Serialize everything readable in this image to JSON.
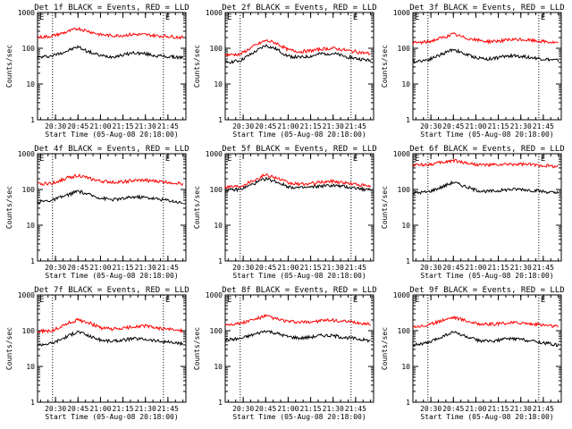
{
  "colors": {
    "events": "#000000",
    "lld": "#ff0000",
    "axes": "#000000",
    "background": "#ffffff"
  },
  "common": {
    "xlabel": "Start Time (05-Aug-08 20:18:00)",
    "ylabel": "Counts/sec",
    "x_tick_labels": [
      "20:30",
      "20:45",
      "21:00",
      "21:15",
      "21:30",
      "21:45"
    ],
    "y_tick_labels": [
      "1",
      "10",
      "100",
      "1000"
    ],
    "marker_left": "E",
    "marker_right": "E"
  },
  "chart_data": [
    {
      "type": "line",
      "title": "Det 1f BLACK = Events, RED = LLD",
      "xlabel": "Start Time (05-Aug-08 20:18:00)",
      "ylabel": "Counts/sec",
      "ylim": [
        1,
        1000
      ],
      "y_scale": "log",
      "xlim": [
        "20:18",
        "21:57"
      ],
      "vertical_markers": [
        "20:28",
        "21:42"
      ],
      "x": [
        "20:18",
        "20:28",
        "20:38",
        "20:45",
        "20:52",
        "21:00",
        "21:08",
        "21:15",
        "21:22",
        "21:30",
        "21:37",
        "21:45",
        "21:55"
      ],
      "series": [
        {
          "name": "BLACK = Events",
          "values": [
            55,
            62,
            85,
            110,
            80,
            62,
            58,
            65,
            75,
            70,
            62,
            58,
            55
          ]
        },
        {
          "name": "RED = LLD",
          "values": [
            200,
            220,
            290,
            360,
            300,
            240,
            225,
            230,
            245,
            240,
            225,
            215,
            200
          ]
        }
      ]
    },
    {
      "type": "line",
      "title": "Det 2f BLACK = Events, RED = LLD",
      "xlabel": "Start Time (05-Aug-08 20:18:00)",
      "ylabel": "Counts/sec",
      "ylim": [
        1,
        1000
      ],
      "y_scale": "log",
      "xlim": [
        "20:18",
        "21:57"
      ],
      "vertical_markers": [
        "20:28",
        "21:42"
      ],
      "x": [
        "20:18",
        "20:28",
        "20:38",
        "20:45",
        "20:52",
        "21:00",
        "21:08",
        "21:15",
        "21:22",
        "21:30",
        "21:37",
        "21:45",
        "21:55"
      ],
      "series": [
        {
          "name": "BLACK = Events",
          "values": [
            40,
            45,
            80,
            120,
            95,
            60,
            55,
            60,
            70,
            72,
            60,
            52,
            45
          ]
        },
        {
          "name": "RED = LLD",
          "values": [
            65,
            68,
            120,
            165,
            140,
            90,
            80,
            85,
            95,
            100,
            90,
            80,
            70
          ]
        }
      ]
    },
    {
      "type": "line",
      "title": "Det 3f BLACK = Events, RED = LLD",
      "xlabel": "Start Time (05-Aug-08 20:18:00)",
      "ylabel": "Counts/sec",
      "ylim": [
        1,
        1000
      ],
      "y_scale": "log",
      "xlim": [
        "20:18",
        "21:57"
      ],
      "vertical_markers": [
        "20:28",
        "21:42"
      ],
      "x": [
        "20:18",
        "20:28",
        "20:38",
        "20:45",
        "20:52",
        "21:00",
        "21:08",
        "21:15",
        "21:22",
        "21:30",
        "21:37",
        "21:45",
        "21:55"
      ],
      "series": [
        {
          "name": "BLACK = Events",
          "values": [
            42,
            48,
            70,
            95,
            70,
            55,
            50,
            55,
            62,
            60,
            55,
            50,
            45
          ]
        },
        {
          "name": "RED = LLD",
          "values": [
            140,
            150,
            200,
            250,
            200,
            170,
            155,
            160,
            170,
            175,
            165,
            155,
            140
          ]
        }
      ]
    },
    {
      "type": "line",
      "title": "Det 4f BLACK = Events, RED = LLD",
      "xlabel": "Start Time (05-Aug-08 20:18:00)",
      "ylabel": "Counts/sec",
      "ylim": [
        1,
        1000
      ],
      "y_scale": "log",
      "xlim": [
        "20:18",
        "21:57"
      ],
      "vertical_markers": [
        "20:28",
        "21:42"
      ],
      "x": [
        "20:18",
        "20:28",
        "20:38",
        "20:45",
        "20:52",
        "21:00",
        "21:08",
        "21:15",
        "21:22",
        "21:30",
        "21:37",
        "21:45",
        "21:55"
      ],
      "series": [
        {
          "name": "BLACK = Events",
          "values": [
            45,
            50,
            70,
            90,
            72,
            58,
            52,
            55,
            62,
            60,
            55,
            50,
            42
          ]
        },
        {
          "name": "RED = LLD",
          "values": [
            140,
            150,
            210,
            250,
            205,
            170,
            160,
            165,
            175,
            180,
            170,
            160,
            145
          ]
        }
      ]
    },
    {
      "type": "line",
      "title": "Det 5f BLACK = Events, RED = LLD",
      "xlabel": "Start Time (05-Aug-08 20:18:00)",
      "ylabel": "Counts/sec",
      "ylim": [
        1,
        1000
      ],
      "y_scale": "log",
      "xlim": [
        "20:18",
        "21:57"
      ],
      "vertical_markers": [
        "20:28",
        "21:42"
      ],
      "x": [
        "20:18",
        "20:28",
        "20:38",
        "20:45",
        "20:52",
        "21:00",
        "21:08",
        "21:15",
        "21:22",
        "21:30",
        "21:37",
        "21:45",
        "21:55"
      ],
      "series": [
        {
          "name": "BLACK = Events",
          "values": [
            95,
            100,
            150,
            200,
            165,
            120,
            110,
            115,
            125,
            130,
            120,
            110,
            95
          ]
        },
        {
          "name": "RED = LLD",
          "values": [
            120,
            125,
            190,
            260,
            215,
            150,
            140,
            145,
            160,
            170,
            155,
            140,
            120
          ]
        }
      ]
    },
    {
      "type": "line",
      "title": "Det 6f BLACK = Events, RED = LLD",
      "xlabel": "Start Time (05-Aug-08 20:18:00)",
      "ylabel": "Counts/sec",
      "ylim": [
        1,
        1000
      ],
      "y_scale": "log",
      "xlim": [
        "20:18",
        "21:57"
      ],
      "vertical_markers": [
        "20:28",
        "21:42"
      ],
      "x": [
        "20:18",
        "20:28",
        "20:38",
        "20:45",
        "20:52",
        "21:00",
        "21:08",
        "21:15",
        "21:22",
        "21:30",
        "21:37",
        "21:45",
        "21:55"
      ],
      "series": [
        {
          "name": "BLACK = Events",
          "values": [
            80,
            85,
            120,
            160,
            125,
            95,
            88,
            92,
            100,
            102,
            95,
            88,
            78
          ]
        },
        {
          "name": "RED = LLD",
          "values": [
            480,
            500,
            570,
            650,
            570,
            500,
            480,
            490,
            500,
            510,
            490,
            470,
            440
          ]
        }
      ]
    },
    {
      "type": "line",
      "title": "Det 7f BLACK = Events, RED = LLD",
      "xlabel": "Start Time (05-Aug-08 20:18:00)",
      "ylabel": "Counts/sec",
      "ylim": [
        1,
        1000
      ],
      "y_scale": "log",
      "xlim": [
        "20:18",
        "21:57"
      ],
      "vertical_markers": [
        "20:28",
        "21:42"
      ],
      "x": [
        "20:18",
        "20:28",
        "20:38",
        "20:45",
        "20:52",
        "21:00",
        "21:08",
        "21:15",
        "21:22",
        "21:30",
        "21:37",
        "21:45",
        "21:55"
      ],
      "series": [
        {
          "name": "BLACK = Events",
          "values": [
            40,
            45,
            70,
            95,
            72,
            55,
            50,
            55,
            60,
            58,
            52,
            48,
            42
          ]
        },
        {
          "name": "RED = LLD",
          "values": [
            95,
            100,
            160,
            200,
            170,
            120,
            110,
            115,
            130,
            135,
            120,
            110,
            100
          ]
        }
      ]
    },
    {
      "type": "line",
      "title": "Det 8f BLACK = Events, RED = LLD",
      "xlabel": "Start Time (05-Aug-08 20:18:00)",
      "ylabel": "Counts/sec",
      "ylim": [
        1,
        1000
      ],
      "y_scale": "log",
      "xlim": [
        "20:18",
        "21:57"
      ],
      "vertical_markers": [
        "20:28",
        "21:42"
      ],
      "x": [
        "20:18",
        "20:28",
        "20:38",
        "20:45",
        "20:52",
        "21:00",
        "21:08",
        "21:15",
        "21:22",
        "21:30",
        "21:37",
        "21:45",
        "21:55"
      ],
      "series": [
        {
          "name": "BLACK = Events",
          "values": [
            55,
            60,
            80,
            100,
            85,
            68,
            62,
            66,
            74,
            72,
            65,
            60,
            52
          ]
        },
        {
          "name": "RED = LLD",
          "values": [
            150,
            160,
            210,
            260,
            215,
            180,
            170,
            178,
            190,
            195,
            180,
            170,
            150
          ]
        }
      ]
    },
    {
      "type": "line",
      "title": "Det 9f BLACK = Events, RED = LLD",
      "xlabel": "Start Time (05-Aug-08 20:18:00)",
      "ylabel": "Counts/sec",
      "ylim": [
        1,
        1000
      ],
      "y_scale": "log",
      "xlim": [
        "20:18",
        "21:57"
      ],
      "vertical_markers": [
        "20:28",
        "21:42"
      ],
      "x": [
        "20:18",
        "20:28",
        "20:38",
        "20:45",
        "20:52",
        "21:00",
        "21:08",
        "21:15",
        "21:22",
        "21:30",
        "21:37",
        "21:45",
        "21:55"
      ],
      "series": [
        {
          "name": "BLACK = Events",
          "values": [
            40,
            45,
            70,
            92,
            72,
            55,
            50,
            54,
            60,
            58,
            52,
            46,
            40
          ]
        },
        {
          "name": "RED = LLD",
          "values": [
            130,
            140,
            200,
            240,
            200,
            160,
            150,
            155,
            165,
            168,
            155,
            145,
            130
          ]
        }
      ]
    }
  ]
}
